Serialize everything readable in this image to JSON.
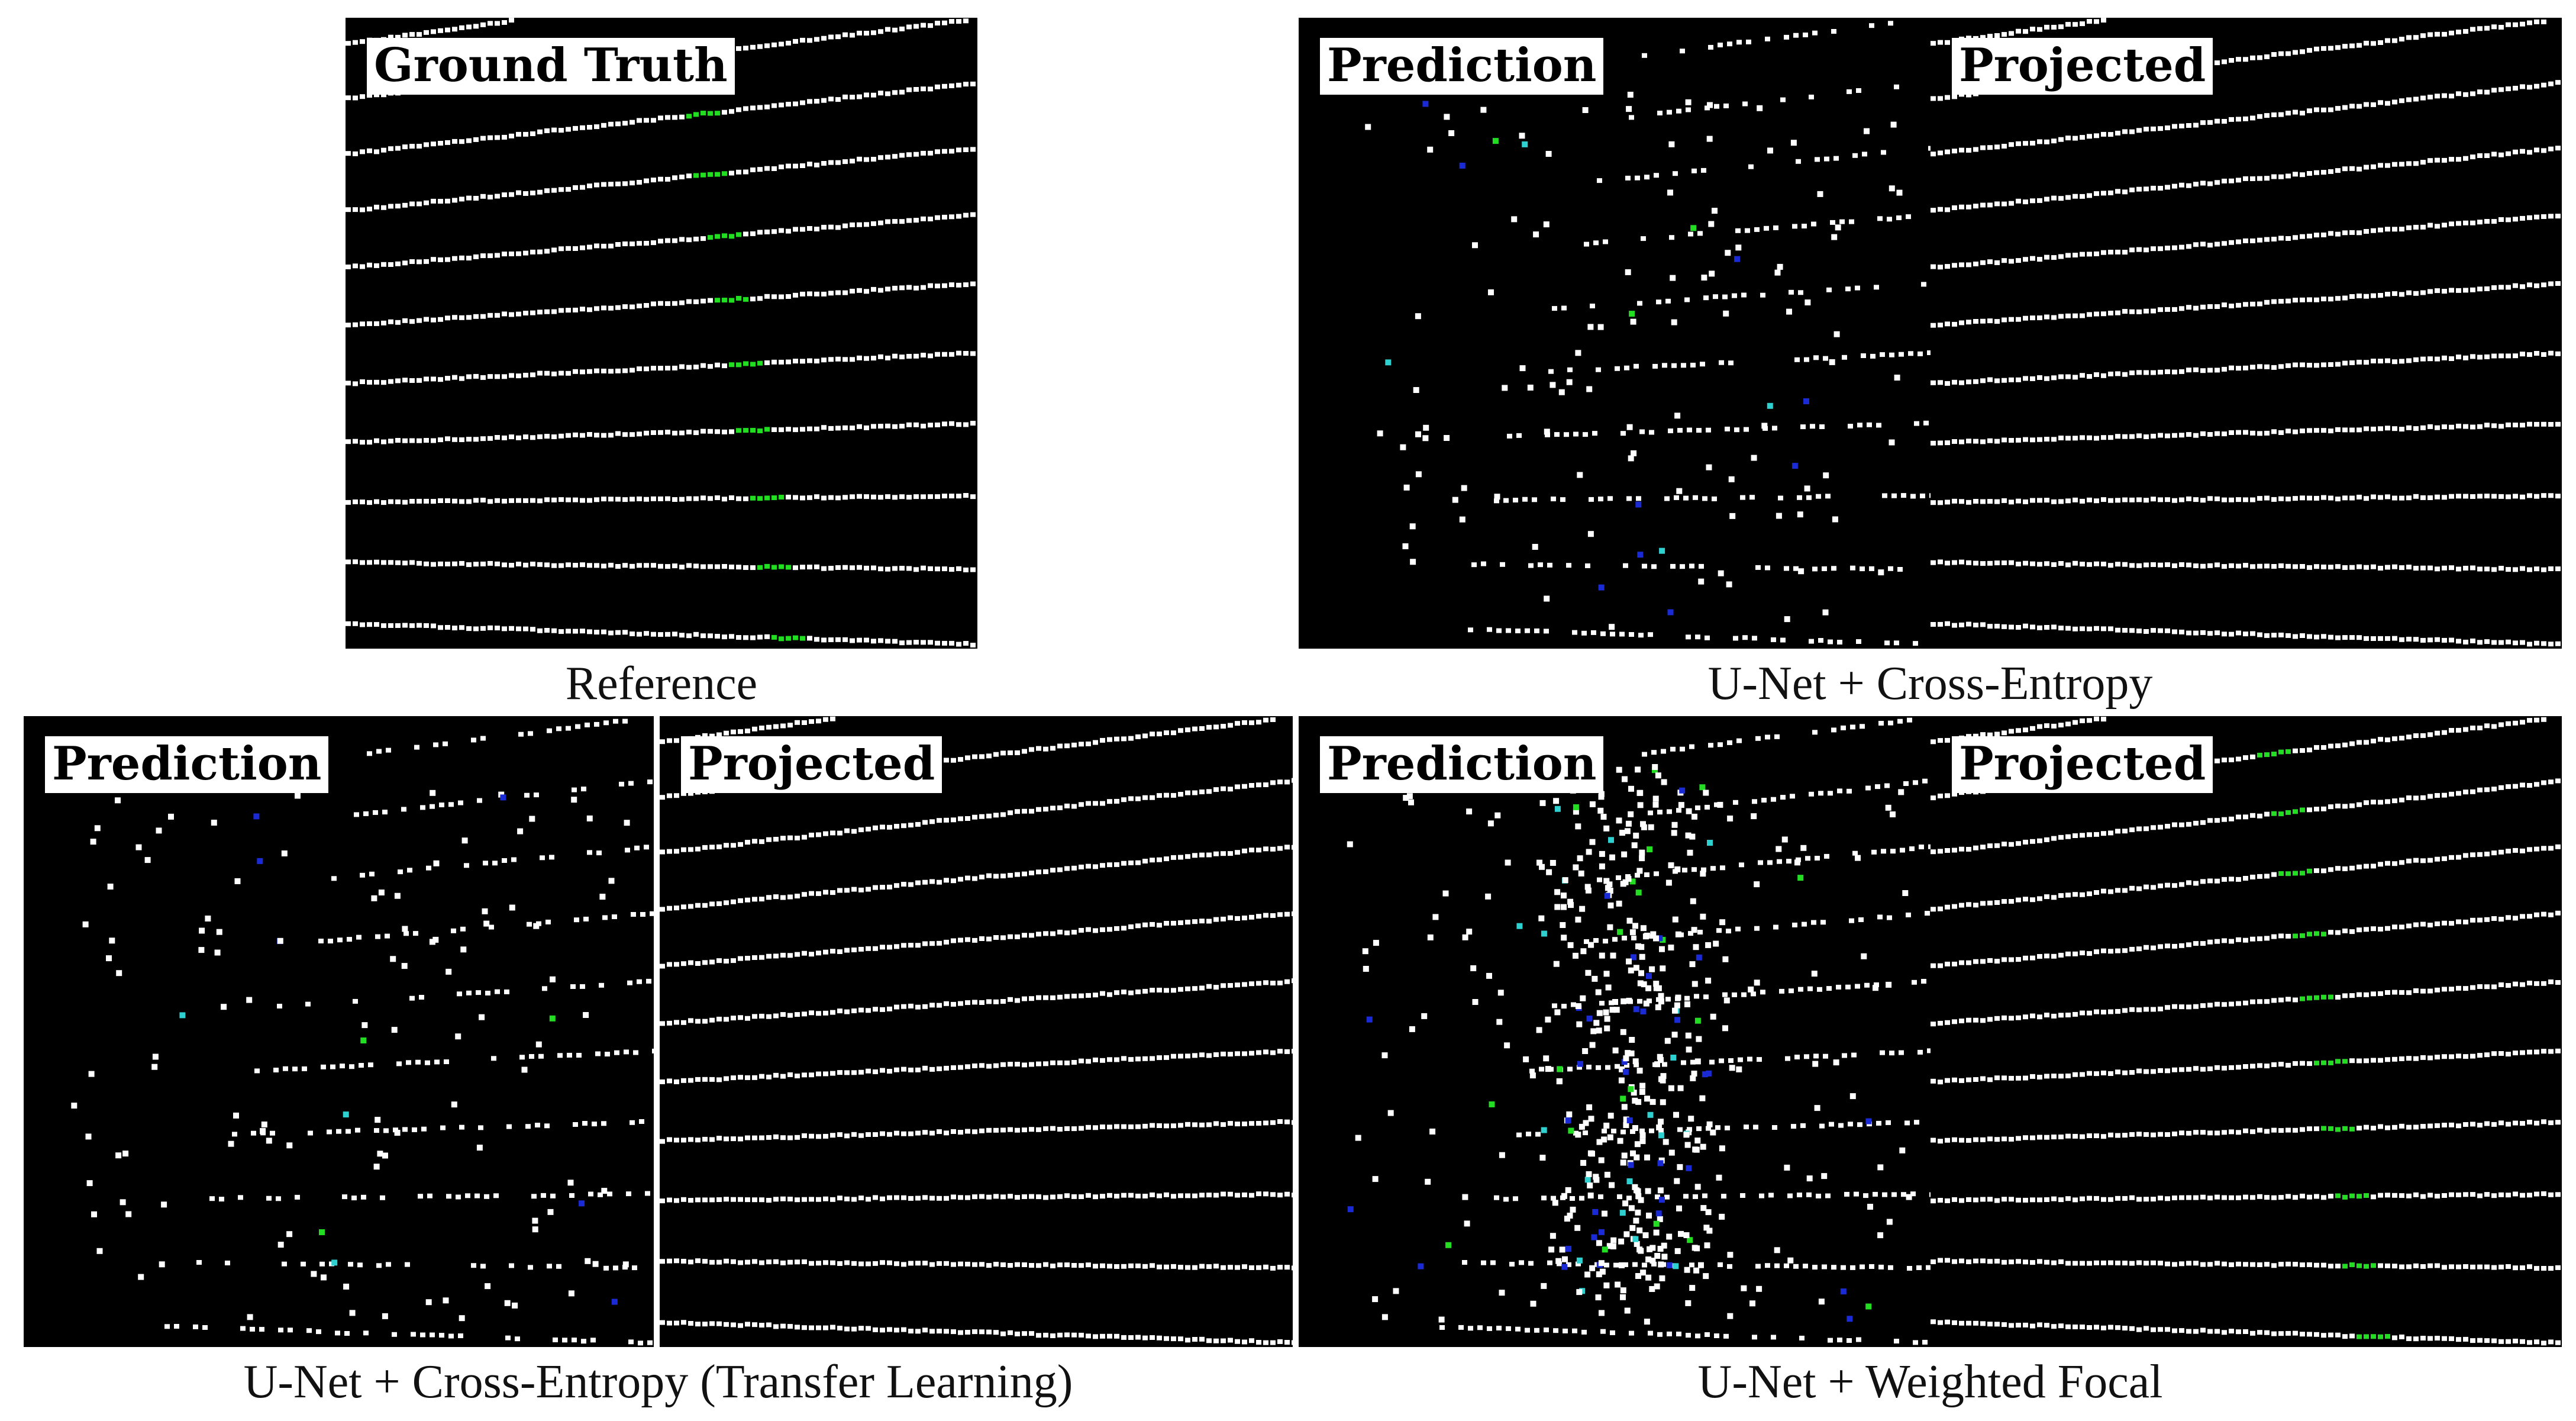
{
  "panels": {
    "reference": {
      "label": "Ground Truth"
    },
    "ce": {
      "prediction_label": "Prediction",
      "projected_label": "Projected"
    },
    "ce_tl": {
      "prediction_label": "Prediction",
      "projected_label": "Projected"
    },
    "wf": {
      "prediction_label": "Prediction",
      "projected_label": "Projected"
    }
  },
  "captions": {
    "reference": "Reference",
    "ce": "U-Net + Cross-Entropy",
    "ce_tl": "U-Net + Cross-Entropy (Transfer Learning)",
    "wf": "U-Net + Weighted Focal"
  },
  "colors": {
    "background": "#000000",
    "point": "#ffffff",
    "class_green": "#22dd22",
    "class_blue": "#1a2bd6",
    "class_cyan": "#2fd0d0"
  }
}
